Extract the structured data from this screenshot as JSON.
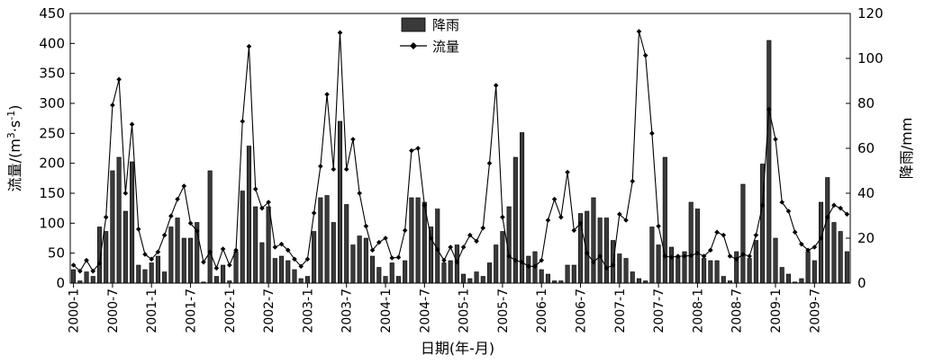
{
  "chart_data": {
    "type": "bar+line",
    "xlabel": "日期(年-月)",
    "ylabel_left_main": "流量/(m",
    "ylabel_left_sup1": "3",
    "ylabel_left_mid": "·s",
    "ylabel_left_sup2": "-1",
    "ylabel_left_end": ")",
    "ylabel_right": "降雨/mm",
    "legend": [
      {
        "name": "降雨",
        "type": "bar",
        "position": "top-center"
      },
      {
        "name": "流量",
        "type": "line",
        "marker": "diamond",
        "position": "top-center"
      }
    ],
    "y_left": {
      "range": [
        0,
        450
      ],
      "ticks": [
        0,
        50,
        100,
        150,
        200,
        250,
        300,
        350,
        400,
        450
      ]
    },
    "y_right": {
      "range": [
        0,
        120
      ],
      "ticks": [
        0,
        20,
        40,
        60,
        80,
        100,
        120
      ]
    },
    "x_tick_labels": [
      "2000-1",
      "2000-7",
      "2001-1",
      "2001-7",
      "2002-1",
      "2002-7",
      "2003-1",
      "2003-7",
      "2004-1",
      "2004-7",
      "2005-1",
      "2005-7",
      "2006-1",
      "2006-7",
      "2007-1",
      "2007-7",
      "2008-1",
      "2008-7",
      "2009-1",
      "2009-7"
    ],
    "months_count": 120,
    "series": [
      {
        "name": "降雨",
        "axis": "right",
        "values": [
          6,
          1,
          5,
          3,
          25,
          23,
          50,
          56,
          32,
          54,
          8,
          6,
          9,
          12,
          5,
          25,
          29,
          20,
          20,
          27,
          0.5,
          50,
          3,
          8,
          1,
          14,
          41,
          61,
          34,
          18,
          34,
          11,
          12,
          10,
          6,
          2,
          3,
          23,
          38,
          39,
          27,
          72,
          35,
          17,
          21,
          20,
          12,
          7,
          3,
          9,
          3,
          10,
          38,
          38,
          36,
          25,
          33,
          9,
          10,
          17,
          4,
          2,
          5,
          3,
          9,
          17,
          23,
          34,
          56,
          67,
          12,
          14,
          6,
          4,
          1,
          1,
          8,
          8,
          31,
          32,
          38,
          29,
          29,
          19,
          13,
          11,
          5,
          2,
          1,
          25,
          17,
          56,
          16,
          12,
          14,
          36,
          33,
          11,
          10,
          10,
          3,
          1,
          14,
          44,
          11,
          19,
          53,
          108,
          20,
          7,
          4,
          0.5,
          2,
          14,
          10,
          36,
          47,
          27,
          23,
          14
        ]
      },
      {
        "name": "流量",
        "axis": "left",
        "values": [
          30,
          20,
          38,
          20,
          33,
          110,
          297,
          340,
          150,
          265,
          90,
          48,
          40,
          52,
          80,
          112,
          140,
          162,
          100,
          87,
          35,
          52,
          25,
          57,
          30,
          55,
          270,
          395,
          157,
          125,
          135,
          60,
          65,
          55,
          40,
          28,
          40,
          117,
          195,
          315,
          190,
          418,
          190,
          240,
          150,
          95,
          55,
          68,
          75,
          42,
          43,
          88,
          221,
          225,
          130,
          75,
          56,
          38,
          60,
          35,
          60,
          80,
          70,
          92,
          200,
          330,
          110,
          45,
          38,
          35,
          28,
          28,
          38,
          105,
          140,
          110,
          185,
          88,
          100,
          50,
          35,
          45,
          25,
          30,
          115,
          105,
          170,
          420,
          380,
          250,
          95,
          45,
          43,
          45,
          45,
          46,
          50,
          45,
          55,
          85,
          80,
          45,
          40,
          48,
          45,
          80,
          130,
          290,
          240,
          135,
          120,
          85,
          65,
          55,
          60,
          75,
          110,
          130,
          125,
          115
        ]
      }
    ]
  }
}
